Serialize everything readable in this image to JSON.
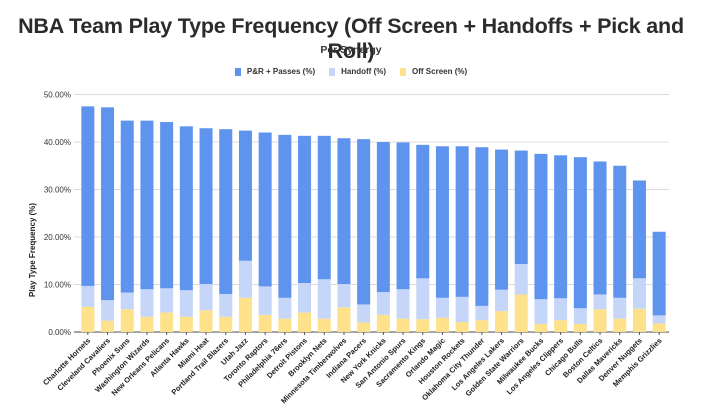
{
  "chart_data": {
    "type": "bar",
    "stacked": true,
    "title": "NBA Team Play Type Frequency (Off Screen + Handoffs + Pick and Roll)",
    "subtitle": "Per Synergy",
    "xlabel": "",
    "ylabel": "Play Type Frequency (%)",
    "ylim": [
      0,
      50
    ],
    "yticks": [
      "0.00%",
      "10.00%",
      "20.00%",
      "30.00%",
      "40.00%",
      "50.00%"
    ],
    "ytick_values": [
      0,
      10,
      20,
      30,
      40,
      50
    ],
    "grid": true,
    "legend_position": "top-center",
    "categories": [
      "Charlotte Hornets",
      "Cleveland Cavaliers",
      "Phoenix Suns",
      "Washington Wizards",
      "New Orleans Pelicans",
      "Atlanta Hawks",
      "Miami Heat",
      "Portland Trail Blazers",
      "Utah Jazz",
      "Toronto Raptors",
      "Philadelphia 76ers",
      "Detroit Pistons",
      "Brooklyn Nets",
      "Minnesota Timberwolves",
      "Indiana Pacers",
      "New York Knicks",
      "San Antonio Spurs",
      "Sacramento Kings",
      "Orlando Magic",
      "Houston Rockets",
      "Oklahoma City Thunder",
      "Los Angeles Lakers",
      "Golden State Warriors",
      "Milwaukee Bucks",
      "Los Angeles Clippers",
      "Chicago Bulls",
      "Boston Celtics",
      "Dallas Mavericks",
      "Denver Nuggets",
      "Memphis Grizzlies"
    ],
    "series": [
      {
        "name": "Off Screen (%)",
        "color": "#fde18b",
        "values": [
          5.3,
          2.4,
          4.8,
          3.2,
          4.1,
          3.2,
          4.6,
          3.2,
          7.2,
          3.6,
          2.8,
          4.1,
          2.8,
          5.2,
          2.0,
          3.6,
          2.8,
          2.7,
          3.0,
          2.1,
          2.5,
          4.4,
          7.9,
          1.7,
          2.5,
          1.7,
          4.8,
          2.8,
          4.9,
          1.8
        ]
      },
      {
        "name": "Handoff (%)",
        "color": "#c6d6f9",
        "values": [
          4.4,
          4.3,
          3.5,
          5.8,
          5.1,
          5.6,
          5.5,
          4.8,
          7.8,
          6.0,
          4.4,
          6.2,
          8.3,
          4.9,
          3.8,
          4.8,
          6.2,
          8.6,
          4.2,
          5.3,
          3.0,
          4.5,
          6.4,
          5.2,
          4.6,
          3.3,
          3.1,
          4.4,
          6.4,
          1.7
        ]
      },
      {
        "name": "P&R + Passes (%)",
        "color": "#5e93ee",
        "values": [
          37.8,
          40.6,
          36.2,
          35.5,
          35.0,
          34.5,
          32.8,
          34.7,
          27.4,
          32.4,
          34.3,
          31.0,
          30.2,
          30.7,
          34.8,
          31.6,
          30.9,
          28.1,
          31.9,
          31.7,
          33.4,
          29.5,
          23.9,
          30.6,
          30.1,
          31.8,
          28.0,
          27.8,
          20.6,
          17.6
        ]
      }
    ],
    "legend_order": [
      "P&R + Passes (%)",
      "Handoff (%)",
      "Off Screen (%)"
    ]
  },
  "legend": {
    "items": [
      {
        "label": "P&R + Passes (%)",
        "color": "#5e93ee"
      },
      {
        "label": "Handoff (%)",
        "color": "#c6d6f9"
      },
      {
        "label": "Off Screen (%)",
        "color": "#fde18b"
      }
    ]
  }
}
